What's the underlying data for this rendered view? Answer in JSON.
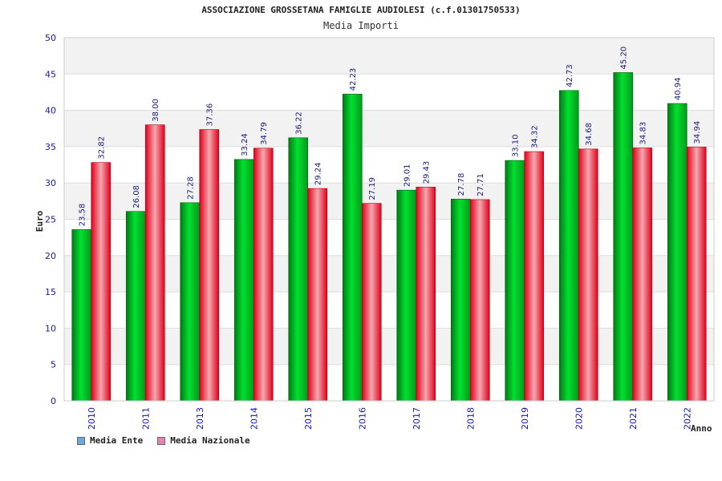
{
  "header": {
    "title": "ASSOCIAZIONE GROSSETANA FAMIGLIE AUDIOLESI (c.f.01301750533)",
    "subtitle": "Media Importi"
  },
  "legend": {
    "items": [
      {
        "label": "Media Ente",
        "color": "#6aa8e6"
      },
      {
        "label": "Media Nazionale",
        "color": "#e880b0"
      }
    ]
  },
  "colors": {
    "ente_bar": "#00cc22",
    "nazionale_bar": "#ee1122",
    "grid_band": "#f2f2f2",
    "tick_text": "#1a1aa0"
  },
  "chart_data": {
    "type": "bar",
    "categories": [
      "2010",
      "2011",
      "2013",
      "2014",
      "2015",
      "2016",
      "2017",
      "2018",
      "2019",
      "2020",
      "2021",
      "2022"
    ],
    "series": [
      {
        "name": "Media Ente",
        "values": [
          23.58,
          26.08,
          27.28,
          33.24,
          36.22,
          42.23,
          29.01,
          27.78,
          33.1,
          42.73,
          45.2,
          40.94
        ]
      },
      {
        "name": "Media Nazionale",
        "values": [
          32.82,
          38.0,
          37.36,
          34.79,
          29.24,
          27.19,
          29.43,
          27.71,
          34.32,
          34.68,
          34.83,
          34.94
        ]
      }
    ],
    "data_labels": [
      [
        "23.58",
        "26.08",
        "27.28",
        "33.24",
        "36.22",
        "42.23",
        "29.01",
        "27.78",
        "33.10",
        "42.73",
        "45.20",
        "40.94"
      ],
      [
        "32.82",
        "38.00",
        "37.36",
        "34.79",
        "29.24",
        "27.19",
        "29.43",
        "27.71",
        "34.32",
        "34.68",
        "34.83",
        "34.94"
      ]
    ],
    "title": "ASSOCIAZIONE GROSSETANA FAMIGLIE AUDIOLESI (c.f.01301750533)",
    "subtitle": "Media Importi",
    "xlabel": "Anno",
    "ylabel": "Euro",
    "ylim": [
      0,
      50
    ],
    "yticks": [
      "0",
      "5",
      "10",
      "15",
      "20",
      "25",
      "30",
      "35",
      "40",
      "45",
      "50"
    ],
    "grid": true,
    "legend_position": "bottom-left"
  }
}
